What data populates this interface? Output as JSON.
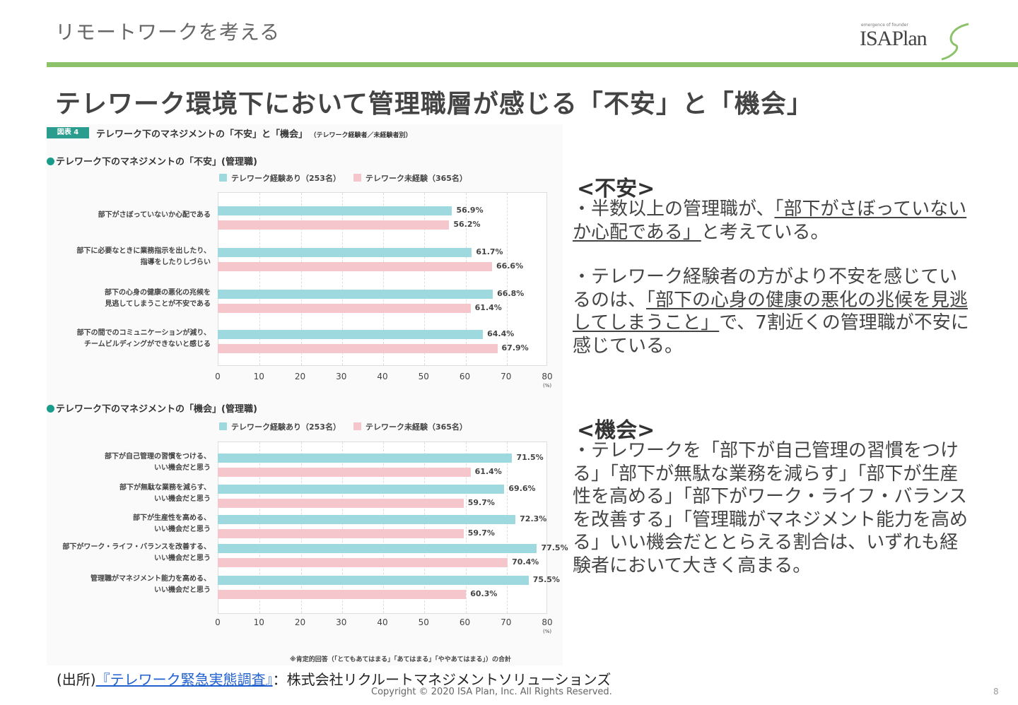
{
  "header": {
    "section": "リモートワークを考える",
    "logo_tagline": "emergence of founder",
    "logo": "ISAPlan"
  },
  "title": "テレワーク環境下において管理職層が感じる「不安」と「機会」",
  "figure": {
    "tag": "図表 4",
    "title": "テレワーク下のマネジメントの「不安」と「機会」",
    "subtitle": "（テレワーク経験者／未経験者別）",
    "note": "※肯定的回答（「とてもあてはまる」「あてはまる」「ややあてはまる」）の合計"
  },
  "colors": {
    "experienced": "#9ed9df",
    "inexperienced": "#f5c6cb",
    "accent": "#8cc26a"
  },
  "chart_data": [
    {
      "type": "bar",
      "orientation": "horizontal",
      "title": "テレワーク下のマネジメントの「不安」(管理職)",
      "legend": [
        "テレワーク経験あり（253名）",
        "テレワーク未経験（365名）"
      ],
      "categories": [
        "部下がさぼっていないか心配である",
        "部下に必要なときに業務指示を出したり、\n指導をしたりしづらい",
        "部下の心身の健康の悪化の兆候を\n見逃してしまうことが不安である",
        "部下の間でのコミュニケーションが減り、\nチームビルディングができないと感じる"
      ],
      "series": [
        {
          "name": "テレワーク経験あり（253名）",
          "values": [
            56.9,
            61.7,
            66.8,
            64.4
          ],
          "labels": [
            "56.9%",
            "61.7%",
            "66.8%",
            "64.4%"
          ]
        },
        {
          "name": "テレワーク未経験（365名）",
          "values": [
            56.2,
            66.6,
            61.4,
            67.9
          ],
          "labels": [
            "56.2%",
            "66.6%",
            "61.4%",
            "67.9%"
          ]
        }
      ],
      "xlim": [
        0,
        80
      ],
      "ticks": [
        "0",
        "10",
        "20",
        "30",
        "40",
        "50",
        "60",
        "70",
        "80"
      ],
      "unit": "(%)"
    },
    {
      "type": "bar",
      "orientation": "horizontal",
      "title": "テレワーク下のマネジメントの「機会」(管理職)",
      "legend": [
        "テレワーク経験あり（253名）",
        "テレワーク未経験（365名）"
      ],
      "categories": [
        "部下が自己管理の習慣をつける、\nいい機会だと思う",
        "部下が無駄な業務を減らす、\nいい機会だと思う",
        "部下が生産性を高める、\nいい機会だと思う",
        "部下がワーク・ライフ・バランスを改善する、\nいい機会だと思う",
        "管理職がマネジメント能力を高める、\nいい機会だと思う"
      ],
      "series": [
        {
          "name": "テレワーク経験あり（253名）",
          "values": [
            71.5,
            69.6,
            72.3,
            77.5,
            75.5
          ],
          "labels": [
            "71.5%",
            "69.6%",
            "72.3%",
            "77.5%",
            "75.5%"
          ]
        },
        {
          "name": "テレワーク未経験（365名）",
          "values": [
            61.4,
            59.7,
            59.7,
            70.4,
            60.3
          ],
          "labels": [
            "61.4%",
            "59.7%",
            "59.7%",
            "70.4%",
            "60.3%"
          ]
        }
      ],
      "xlim": [
        0,
        80
      ],
      "ticks": [
        "0",
        "10",
        "20",
        "30",
        "40",
        "50",
        "60",
        "70",
        "80"
      ],
      "unit": "(%)"
    }
  ],
  "right": {
    "anxiety": {
      "heading": "<不安>",
      "p1": {
        "before": "・半数以上の管理職が、",
        "underlined": "「部下がさぼっていないか心配である」",
        "after": "と考えている。"
      },
      "p2": {
        "before": "・テレワーク経験者の方がより不安を感じているのは、",
        "underlined": "「部下の心身の健康の悪化の兆候を見逃してしまうこと」",
        "after": "で、7割近くの管理職が不安に感じている。"
      }
    },
    "opportunity": {
      "heading": "<機会>",
      "p1": "・テレワークを「部下が自己管理の習慣をつける」「部下が無駄な業務を減らす」「部下が生産性を高める」「部下がワーク・ライフ・バランスを改善する」「管理職がマネジメント能力を高める」いい機会だととらえる割合は、いずれも経験者において大きく高まる。"
    }
  },
  "footer": {
    "source_prefix": "(出所)",
    "source_link": "『テレワーク緊急実態調査』",
    "source_suffix": "：株式会社リクルートマネジメントソリューションズ",
    "copyright": "Copyright © 2020 ISA Plan, Inc. All Rights Reserved.",
    "page": "8"
  }
}
